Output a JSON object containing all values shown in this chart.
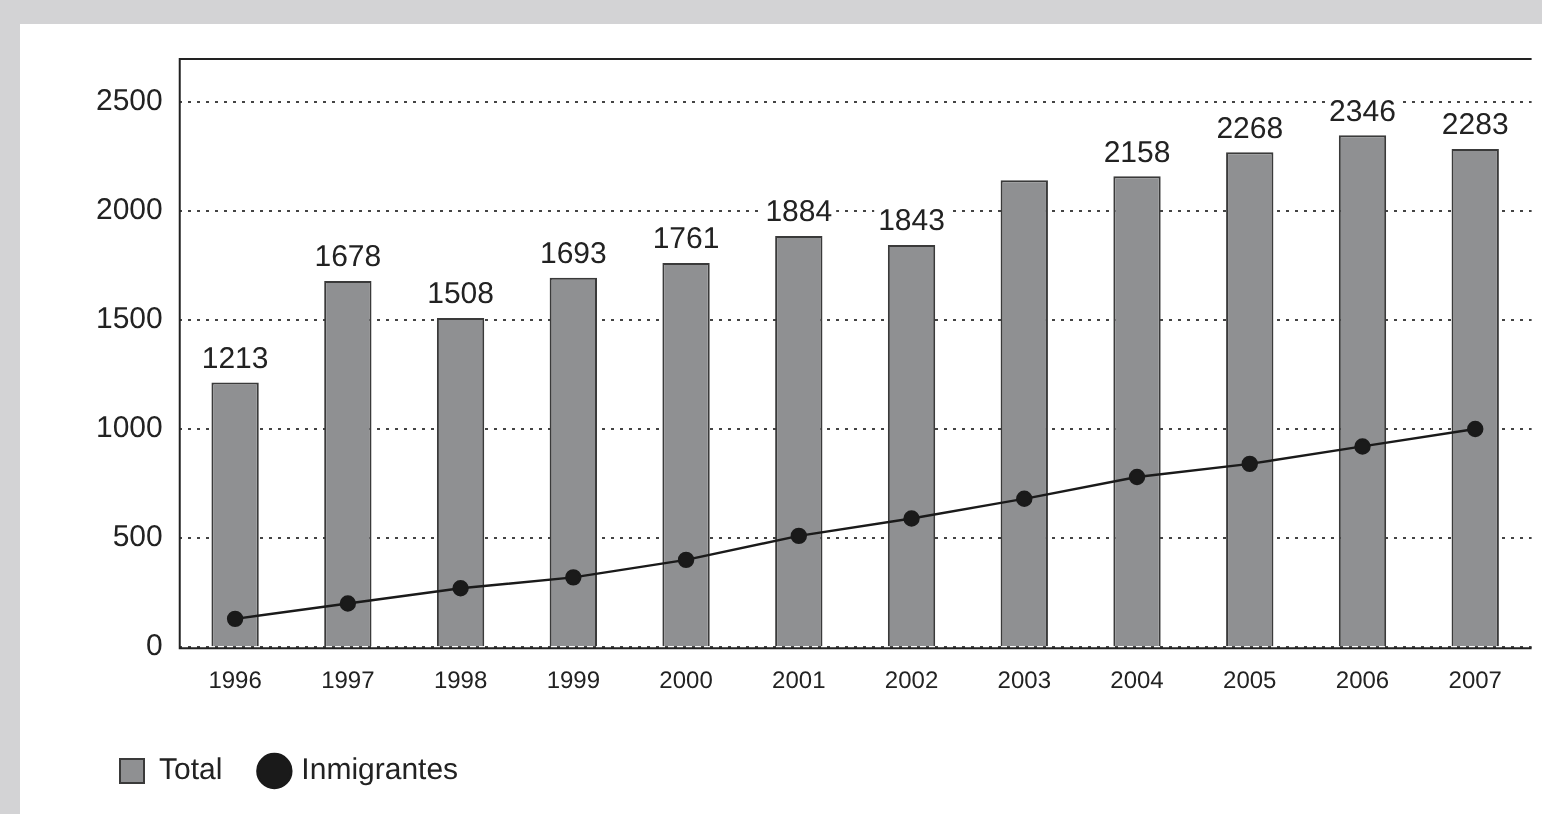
{
  "chart_data": {
    "type": "bar",
    "categories": [
      "1996",
      "1997",
      "1998",
      "1999",
      "2000",
      "2001",
      "2002",
      "2003",
      "2004",
      "2005",
      "2006",
      "2007"
    ],
    "series": [
      {
        "name": "Total",
        "color": "#8f9092",
        "values": [
          1213,
          1678,
          1508,
          1693,
          1761,
          1884,
          1843,
          2140,
          2158,
          2268,
          2346,
          2283
        ],
        "value_labels": [
          "1213",
          "1678",
          "1508",
          "1693",
          "1761",
          "1884",
          "1843",
          null,
          "2158",
          "2268",
          "2346",
          "2283"
        ]
      },
      {
        "name": "Inmigrantes",
        "type": "line",
        "color": "#1a1a1a",
        "marker": "circle",
        "values": [
          130,
          200,
          270,
          320,
          400,
          510,
          590,
          680,
          780,
          840,
          920,
          1000
        ]
      }
    ],
    "ylim": [
      0,
      2700
    ],
    "yticks": [
      0,
      500,
      1000,
      1500,
      2000,
      2500
    ],
    "grid": "y",
    "legend": "bottom left"
  }
}
